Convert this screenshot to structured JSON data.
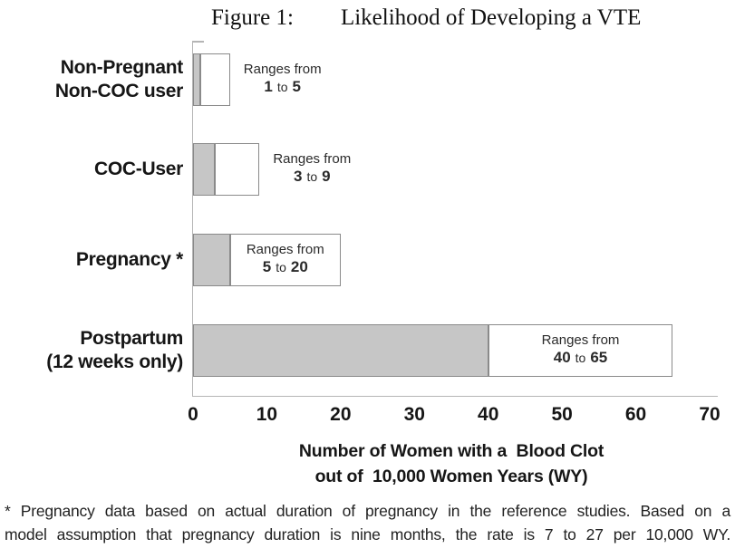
{
  "figure": {
    "label": "Figure 1:",
    "title": "Likelihood of Developing a VTE"
  },
  "chart_data": {
    "type": "bar",
    "orientation": "horizontal",
    "title": "Likelihood of Developing a VTE",
    "xlim": [
      0,
      70
    ],
    "x_ticks": [
      "0",
      "10",
      "20",
      "30",
      "40",
      "50",
      "60",
      "70"
    ],
    "xlabel_lines": [
      "Number of Women with a  Blood Clot",
      "out of  10,000 Women Years (WY)"
    ],
    "grid": false,
    "legend": false,
    "bars": [
      {
        "category_lines": [
          "Non-Pregnant",
          "Non-COC user"
        ],
        "range_min": 1,
        "range_max": 5,
        "annotation": {
          "intro": "Ranges from",
          "from": "1",
          "connector": "to",
          "to": "5"
        },
        "annotation_placement": "outside"
      },
      {
        "category_lines": [
          "COC-User"
        ],
        "range_min": 3,
        "range_max": 9,
        "annotation": {
          "intro": "Ranges from",
          "from": "3",
          "connector": "to",
          "to": "9"
        },
        "annotation_placement": "outside"
      },
      {
        "category_lines": [
          "Pregnancy *"
        ],
        "range_min": 5,
        "range_max": 20,
        "annotation": {
          "intro": "Ranges from",
          "from": "5",
          "connector": "to",
          "to": "20"
        },
        "annotation_placement": "inside"
      },
      {
        "category_lines": [
          "Postpartum",
          "(12 weeks only)"
        ],
        "range_min": 40,
        "range_max": 65,
        "annotation": {
          "intro": "Ranges from",
          "from": "40",
          "connector": "to",
          "to": "65"
        },
        "annotation_placement": "inside"
      }
    ]
  },
  "colors": {
    "bar_fill_low": "#c6c6c6",
    "bar_fill_high": "#ffffff",
    "bar_border": "#8a8a8a",
    "axis_line": "#b5b5b5",
    "text": "#1c1c1c"
  },
  "footnote": {
    "lines": [
      "* Pregnancy data based on actual duration of pregnancy in the reference studies. Based on a",
      "model assumption that pregnancy duration is nine months, the rate is 7 to 27 per 10,000 WY."
    ]
  }
}
